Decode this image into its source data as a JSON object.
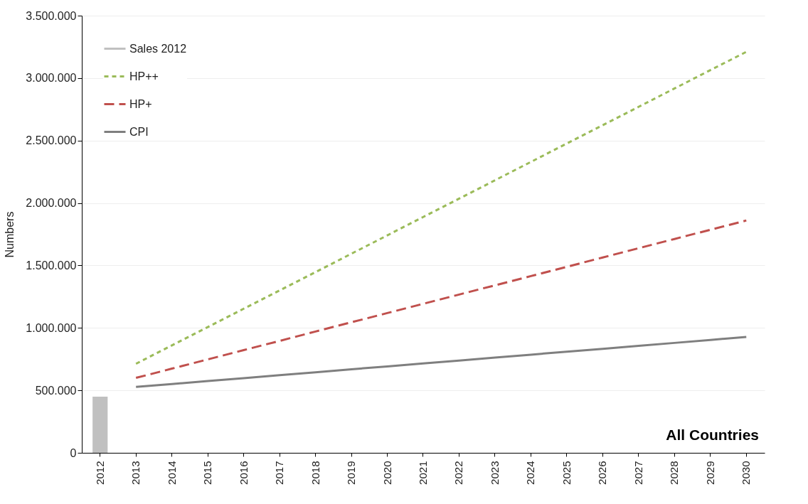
{
  "chart_data": {
    "type": "line",
    "ylabel": "Numbers",
    "categories": [
      "2012",
      "2013",
      "2014",
      "2015",
      "2016",
      "2017",
      "2018",
      "2019",
      "2020",
      "2021",
      "2022",
      "2023",
      "2024",
      "2025",
      "2026",
      "2027",
      "2028",
      "2029",
      "2030"
    ],
    "series": [
      {
        "name": "Sales 2012",
        "type": "bar",
        "color": "#c0c0c0",
        "values": [
          450000,
          null,
          null,
          null,
          null,
          null,
          null,
          null,
          null,
          null,
          null,
          null,
          null,
          null,
          null,
          null,
          null,
          null,
          null
        ]
      },
      {
        "name": "HP++",
        "color": "#9bbb59",
        "line_style": "dashed",
        "values": [
          null,
          713000,
          860000,
          1007000,
          1154000,
          1300000,
          1447000,
          1594000,
          1741000,
          1888000,
          2035000,
          2182000,
          2329000,
          2476000,
          2623000,
          2770000,
          2917000,
          3064000,
          3210000
        ]
      },
      {
        "name": "HP+",
        "color": "#c0504d",
        "line_style": "dashed",
        "values": [
          null,
          600000,
          674000,
          748000,
          822000,
          896000,
          971000,
          1045000,
          1119000,
          1193000,
          1267000,
          1341000,
          1415000,
          1489000,
          1564000,
          1638000,
          1712000,
          1786000,
          1860000
        ]
      },
      {
        "name": "CPI",
        "color": "#7f7f7f",
        "line_style": "solid",
        "values": [
          null,
          528000,
          551000,
          575000,
          598000,
          622000,
          645000,
          669000,
          692000,
          716000,
          739000,
          763000,
          786000,
          810000,
          833000,
          857000,
          880000,
          904000,
          927000
        ]
      }
    ],
    "ylim": [
      0,
      3500000
    ],
    "yticks": [
      0,
      {
        "value": 500000,
        "label": "500.000"
      },
      {
        "value": 1000000,
        "label": "1.000.000"
      },
      {
        "value": 1500000,
        "label": "1.500.000"
      },
      {
        "value": 2000000,
        "label": "2.000.000"
      },
      {
        "value": 2500000,
        "label": "2.500.000"
      },
      {
        "value": 3000000,
        "label": "3.000.000"
      },
      {
        "value": 3500000,
        "label": "3.500.000"
      }
    ],
    "grid": "y",
    "legend": "top left",
    "marker": "none",
    "annotations": [
      "All Countries"
    ]
  }
}
